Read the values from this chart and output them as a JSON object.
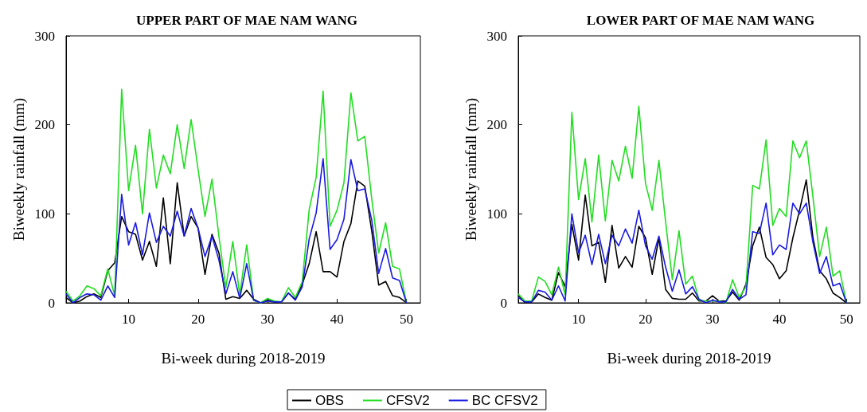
{
  "chart_data": [
    {
      "type": "line",
      "title": "UPPER PART OF MAE NAM WANG",
      "xlabel": "Bi-week during 2018-2019",
      "ylabel": "Biweekly rainfall (mm)",
      "x": [
        1,
        2,
        3,
        4,
        5,
        6,
        7,
        8,
        9,
        10,
        11,
        12,
        13,
        14,
        15,
        16,
        17,
        18,
        19,
        20,
        21,
        22,
        23,
        24,
        25,
        26,
        27,
        28,
        29,
        30,
        31,
        32,
        33,
        34,
        35,
        36,
        37,
        38,
        39,
        40,
        41,
        42,
        43,
        44,
        45,
        46,
        47,
        48,
        49,
        50
      ],
      "xlim": [
        1,
        52
      ],
      "xticks": [
        10,
        20,
        30,
        40,
        50
      ],
      "ylim": [
        0,
        300
      ],
      "yticks": [
        0,
        100,
        200,
        300
      ],
      "grid": false,
      "legend": "bottom",
      "marker": "none",
      "line_style": "solid",
      "series": [
        {
          "name": "OBS",
          "color": "#000000",
          "values": [
            6,
            0,
            2,
            7,
            10,
            6,
            36,
            45,
            97,
            80,
            77,
            48,
            69,
            41,
            118,
            44,
            135,
            75,
            97,
            84,
            32,
            77,
            56,
            4,
            7,
            5,
            14,
            4,
            0,
            3,
            1,
            1,
            11,
            4,
            21,
            44,
            80,
            35,
            35,
            29,
            69,
            89,
            137,
            131,
            81,
            20,
            24,
            8,
            6,
            0
          ]
        },
        {
          "name": "CFSV2",
          "color": "#22dd22",
          "values": [
            13,
            2,
            8,
            19,
            16,
            8,
            38,
            8,
            240,
            126,
            177,
            100,
            195,
            129,
            166,
            145,
            200,
            151,
            206,
            150,
            97,
            139,
            75,
            17,
            69,
            9,
            65,
            3,
            0,
            5,
            2,
            1,
            17,
            6,
            24,
            105,
            141,
            238,
            86,
            104,
            135,
            236,
            182,
            187,
            117,
            56,
            90,
            41,
            38,
            0
          ]
        },
        {
          "name": "BC CFSV2",
          "color": "#1a1ae0",
          "values": [
            10,
            0,
            6,
            10,
            9,
            3,
            19,
            6,
            122,
            65,
            90,
            54,
            101,
            68,
            86,
            75,
            103,
            75,
            106,
            84,
            52,
            75,
            48,
            10,
            35,
            5,
            44,
            3,
            0,
            2,
            1,
            1,
            11,
            3,
            18,
            72,
            101,
            162,
            60,
            71,
            94,
            161,
            126,
            128,
            93,
            33,
            61,
            28,
            25,
            0
          ]
        }
      ]
    },
    {
      "type": "line",
      "title": "LOWER PART OF MAE NAM WANG",
      "xlabel": "Bi-week during 2018-2019",
      "ylabel": "Biweekly rainfall (mm)",
      "x": [
        1,
        2,
        3,
        4,
        5,
        6,
        7,
        8,
        9,
        10,
        11,
        12,
        13,
        14,
        15,
        16,
        17,
        18,
        19,
        20,
        21,
        22,
        23,
        24,
        25,
        26,
        27,
        28,
        29,
        30,
        31,
        32,
        33,
        34,
        35,
        36,
        37,
        38,
        39,
        40,
        41,
        42,
        43,
        44,
        45,
        46,
        47,
        48,
        49,
        50
      ],
      "xlim": [
        1,
        52
      ],
      "xticks": [
        10,
        20,
        30,
        40,
        50
      ],
      "ylim": [
        0,
        300
      ],
      "yticks": [
        0,
        100,
        200,
        300
      ],
      "grid": false,
      "legend": false,
      "marker": "none",
      "line_style": "solid",
      "series": [
        {
          "color": "#000000",
          "values": [
            8,
            0,
            1,
            10,
            6,
            3,
            34,
            18,
            88,
            48,
            121,
            64,
            68,
            23,
            87,
            39,
            52,
            40,
            86,
            73,
            32,
            73,
            15,
            5,
            4,
            4,
            11,
            2,
            2,
            8,
            2,
            2,
            12,
            3,
            21,
            64,
            85,
            51,
            43,
            27,
            36,
            73,
            104,
            138,
            73,
            36,
            27,
            11,
            6,
            0
          ]
        },
        {
          "color": "#22dd22",
          "values": [
            10,
            2,
            2,
            29,
            24,
            9,
            40,
            9,
            214,
            116,
            162,
            91,
            166,
            92,
            160,
            137,
            176,
            140,
            221,
            134,
            104,
            160,
            91,
            26,
            81,
            21,
            30,
            3,
            2,
            2,
            2,
            0,
            26,
            6,
            18,
            132,
            128,
            183,
            87,
            106,
            97,
            182,
            163,
            182,
            119,
            52,
            85,
            30,
            36,
            0
          ]
        },
        {
          "color": "#1a1ae0",
          "values": [
            6,
            1,
            1,
            14,
            12,
            3,
            19,
            2,
            100,
            56,
            76,
            43,
            77,
            44,
            76,
            64,
            83,
            67,
            104,
            64,
            49,
            75,
            40,
            13,
            37,
            10,
            18,
            4,
            0,
            3,
            1,
            1,
            15,
            4,
            9,
            80,
            78,
            112,
            54,
            65,
            60,
            112,
            100,
            112,
            68,
            33,
            52,
            19,
            22,
            0
          ]
        }
      ]
    }
  ]
}
